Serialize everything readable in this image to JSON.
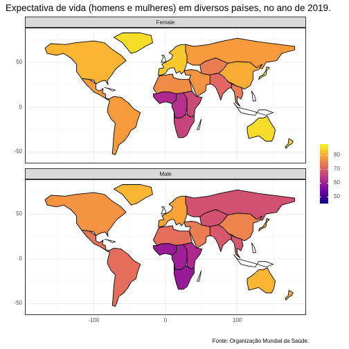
{
  "title": "Expectativa de vida (homens e mulheres) em diversos países, no ano de 2019.",
  "caption": "Fonte: Organização Mundial da Saúde.",
  "chart_data": {
    "type": "choropleth",
    "facets": [
      {
        "name": "Female",
        "regions": {
          "north_america": 81,
          "greenland": 85,
          "mexico_central": 78,
          "south_america": 78,
          "europe": 83,
          "russia": 78,
          "north_africa": 76,
          "west_africa": 62,
          "central_africa": 63,
          "east_africa": 67,
          "southern_africa": 66,
          "middle_east": 77,
          "central_asia": 74,
          "south_asia": 71,
          "china": 80,
          "southeast_asia": 74,
          "japan": 87,
          "australia": 85,
          "new_zealand": 84
        }
      },
      {
        "name": "Male",
        "regions": {
          "north_america": 77,
          "greenland": 81,
          "mexico_central": 73,
          "south_america": 72,
          "europe": 79,
          "russia": 68,
          "north_africa": 72,
          "west_africa": 59,
          "central_africa": 60,
          "east_africa": 62,
          "southern_africa": 59,
          "middle_east": 74,
          "central_asia": 68,
          "south_asia": 69,
          "china": 75,
          "southeast_asia": 69,
          "japan": 81,
          "australia": 81,
          "new_zealand": 80
        }
      }
    ],
    "x_ticks": [
      "-100",
      "0",
      "100"
    ],
    "x_tick_values": [
      -100,
      0,
      100
    ],
    "y_ticks": [
      "50",
      "0",
      "-50"
    ],
    "y_tick_values": [
      50,
      0,
      -50
    ],
    "xlim": [
      -195,
      195
    ],
    "ylim": [
      -62,
      88
    ],
    "colorbar": {
      "range": [
        45,
        88
      ],
      "ticks": [
        "80",
        "70",
        "60",
        "50"
      ],
      "tick_values": [
        80,
        70,
        60,
        50
      ],
      "colors": [
        "#0d0887",
        "#6a00a8",
        "#b12a90",
        "#e16462",
        "#fca636",
        "#f0f921"
      ]
    }
  }
}
